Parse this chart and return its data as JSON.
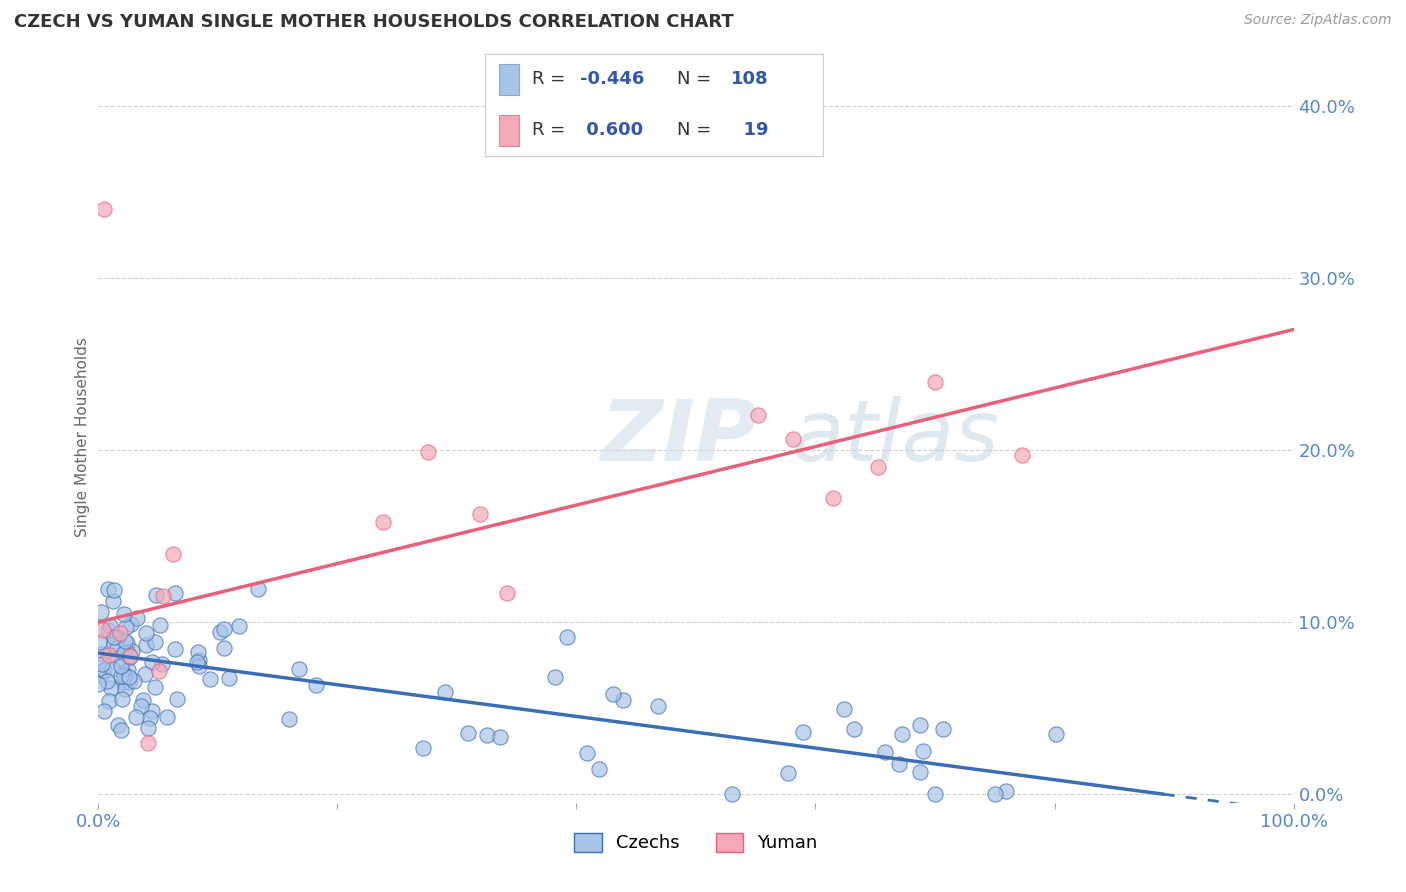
{
  "title": "CZECH VS YUMAN SINGLE MOTHER HOUSEHOLDS CORRELATION CHART",
  "source": "Source: ZipAtlas.com",
  "ylabel": "Single Mother Households",
  "legend_labels": [
    "Czechs",
    "Yuman"
  ],
  "czech_R": -0.446,
  "czech_N": 108,
  "yuman_R": 0.6,
  "yuman_N": 19,
  "czech_color": "#a8c4e6",
  "yuman_color": "#f5a8b8",
  "czech_line_color": "#3a6fb5",
  "yuman_line_color": "#e8607a",
  "background_color": "#ffffff",
  "grid_color": "#cccccc",
  "title_color": "#333333",
  "axis_tick_color": "#5588cc",
  "watermark_color": "#d8e8f0",
  "xlim": [
    0.0,
    1.0
  ],
  "ylim": [
    -0.005,
    0.42
  ],
  "czech_trend_x0": 0.0,
  "czech_trend_y0": 0.082,
  "czech_trend_x1": 1.0,
  "czech_trend_y1": -0.01,
  "yuman_trend_x0": 0.0,
  "yuman_trend_y0": 0.1,
  "yuman_trend_x1": 1.0,
  "yuman_trend_y1": 0.27
}
